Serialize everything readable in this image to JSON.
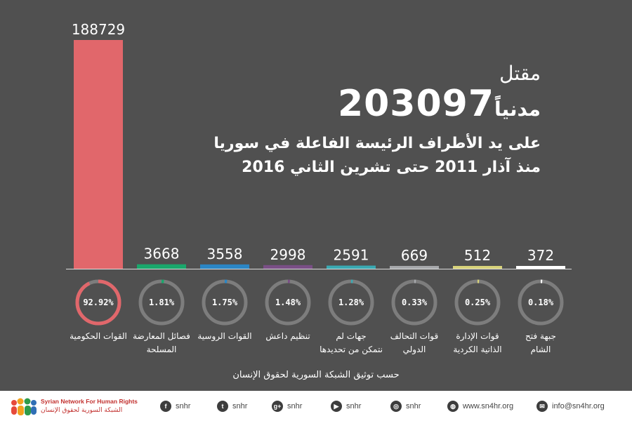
{
  "title": {
    "word_killed": "مقتل",
    "number": "203097",
    "word_civilians": "مدنياً",
    "line1": "على يد الأطراف الرئيسة الفاعلة في سوريا",
    "line2": "منذ آذار 2011 حتى تشرين الثاني 2016"
  },
  "chart_data": {
    "type": "bar",
    "categories": [
      "القوات الحكومية",
      "فصائل المعارضة\nالمسلحة",
      "القوات الروسية",
      "تنظيم داعش",
      "جهات لم\nنتمكن من تحديدها",
      "قوات التحالف\nالدولي",
      "قوات الإدارة\nالذاتية الكردية",
      "جبهة فتح\nالشام"
    ],
    "values": [
      188729,
      3668,
      3558,
      2998,
      2591,
      669,
      512,
      372
    ],
    "value_labels": [
      "188729",
      "3668",
      "3558",
      "2998",
      "2591",
      "669",
      "512",
      "372"
    ],
    "percentages": [
      92.92,
      1.81,
      1.75,
      1.48,
      1.28,
      0.33,
      0.25,
      0.18
    ],
    "percent_labels": [
      "92.92%",
      "1.81%",
      "1.75%",
      "1.48%",
      "1.28%",
      "0.33%",
      "0.25%",
      "0.18%"
    ],
    "colors": [
      "#e1676b",
      "#1aa86c",
      "#2b86c5",
      "#7a4f86",
      "#3aaab3",
      "#a7a9ac",
      "#d8d37a",
      "#ffffff"
    ],
    "ylim": [
      0,
      188729
    ]
  },
  "source": "حسب توثيق الشبكة السورية لحقوق الإنسان",
  "footer": {
    "logo_en": "Syrian Network For Human Rights",
    "logo_ar": "الشبكة السورية لحقوق الإنسان",
    "contacts": [
      {
        "icon": "facebook-icon",
        "glyph": "f",
        "text": "snhr"
      },
      {
        "icon": "twitter-icon",
        "glyph": "t",
        "text": "snhr"
      },
      {
        "icon": "google-plus-icon",
        "glyph": "g+",
        "text": "snhr"
      },
      {
        "icon": "youtube-icon",
        "glyph": "▶",
        "text": "snhr"
      },
      {
        "icon": "instagram-icon",
        "glyph": "◎",
        "text": "snhr"
      },
      {
        "icon": "globe-icon",
        "glyph": "◍",
        "text": "www.sn4hr.org"
      },
      {
        "icon": "email-icon",
        "glyph": "✉",
        "text": "info@sn4hr.org"
      }
    ],
    "logo_colors": [
      "#e64a3b",
      "#f2a21e",
      "#2e9b4a",
      "#2f6fb5"
    ]
  }
}
